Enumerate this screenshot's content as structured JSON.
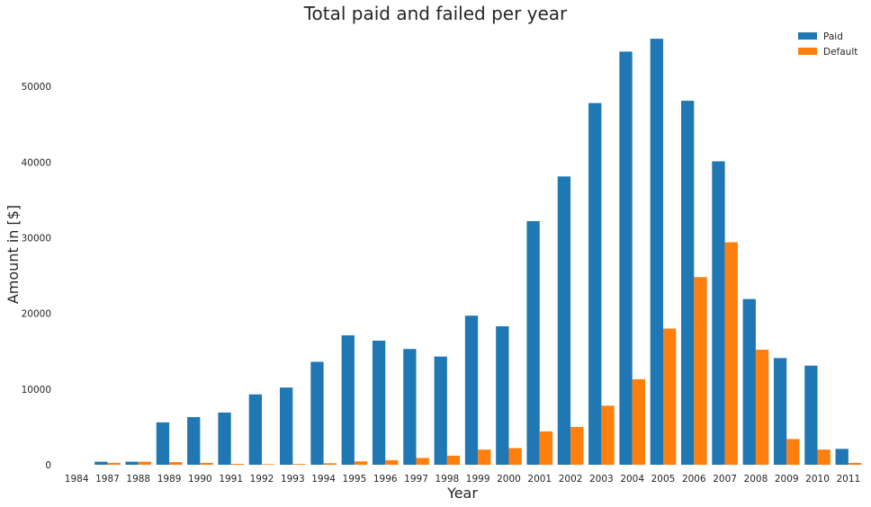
{
  "chart_data": {
    "type": "bar",
    "title": "Total paid and failed per year",
    "xlabel": "Year",
    "ylabel": "Amount in [$]",
    "categories": [
      "1984",
      "1987",
      "1988",
      "1989",
      "1990",
      "1991",
      "1992",
      "1993",
      "1994",
      "1995",
      "1996",
      "1997",
      "1998",
      "1999",
      "2000",
      "2001",
      "2002",
      "2003",
      "2004",
      "2005",
      "2006",
      "2007",
      "2008",
      "2009",
      "2010",
      "2011"
    ],
    "series": [
      {
        "name": "Paid",
        "color": "#1f77b4",
        "values": [
          0,
          400,
          400,
          5600,
          6300,
          6900,
          9300,
          10200,
          13600,
          17100,
          16400,
          15300,
          14300,
          19700,
          18300,
          32200,
          38100,
          47800,
          54600,
          56300,
          48100,
          40100,
          21900,
          14100,
          13100,
          2100
        ]
      },
      {
        "name": "Default",
        "color": "#ff7f0e",
        "values": [
          0,
          250,
          400,
          350,
          250,
          120,
          80,
          100,
          200,
          450,
          600,
          900,
          1200,
          2000,
          2200,
          4400,
          5000,
          7800,
          11300,
          18000,
          24800,
          29400,
          15200,
          3400,
          2000,
          250
        ]
      }
    ],
    "yticks": [
      0,
      10000,
      20000,
      30000,
      40000,
      50000
    ],
    "ylim": [
      0,
      57500
    ],
    "grid": false,
    "legend_position": "top-right"
  }
}
